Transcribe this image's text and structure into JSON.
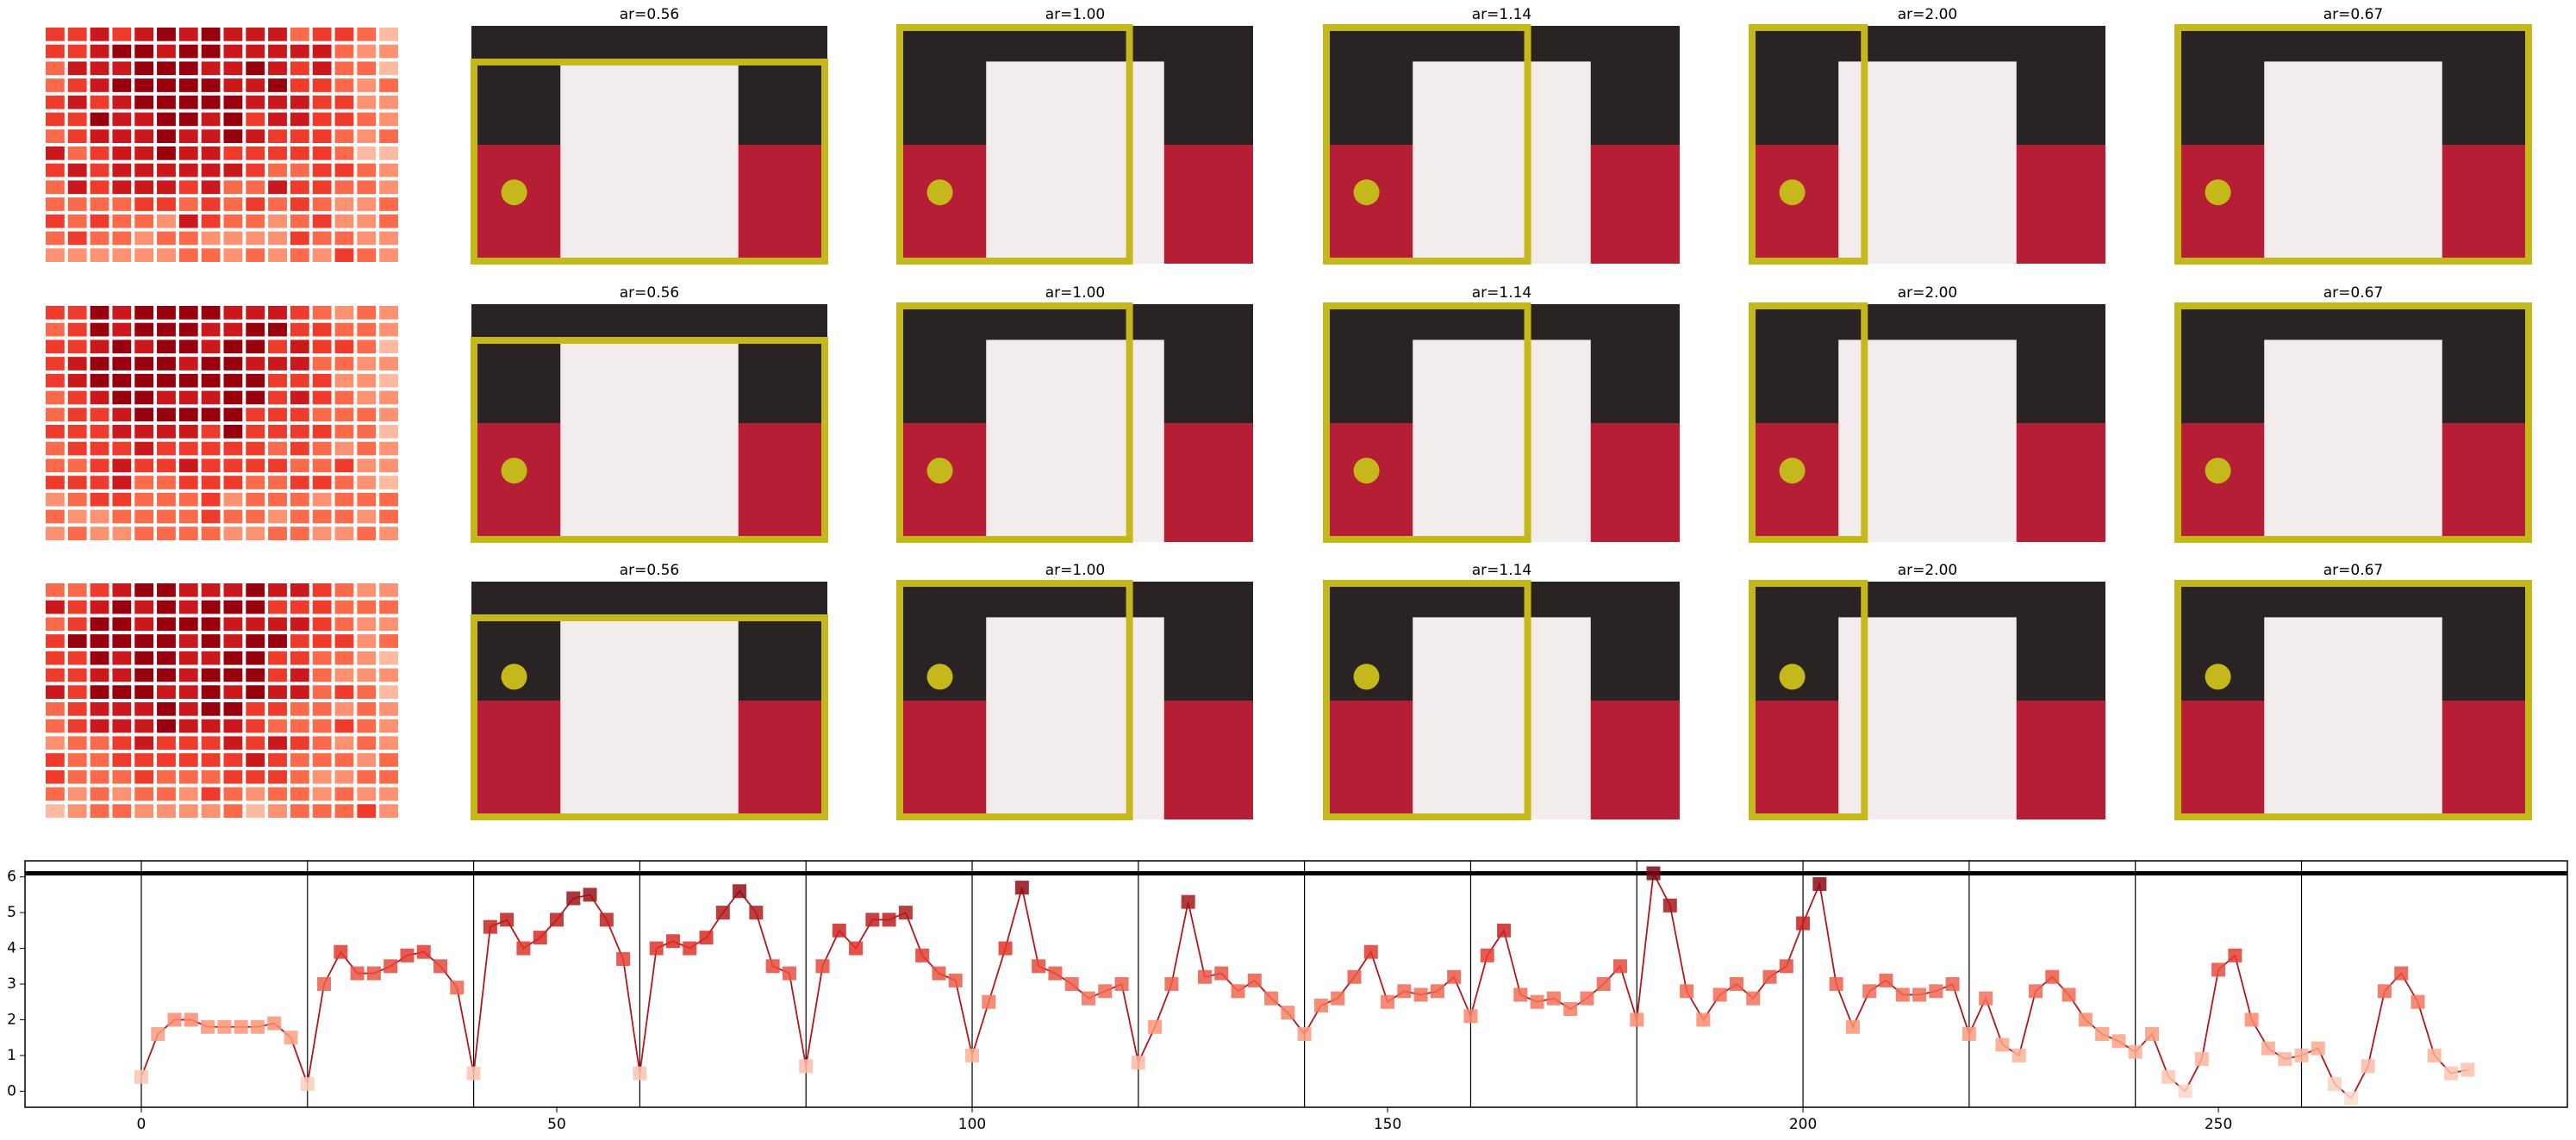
{
  "panels": {
    "rows": [
      {
        "titles": [
          "ar=0.56",
          "ar=1.00",
          "ar=1.14",
          "ar=2.00",
          "ar=0.67"
        ]
      },
      {
        "titles": [
          "ar=0.56",
          "ar=1.00",
          "ar=1.14",
          "ar=2.00",
          "ar=0.67"
        ]
      },
      {
        "titles": [
          "ar=0.56",
          "ar=1.00",
          "ar=1.14",
          "ar=2.00",
          "ar=0.67"
        ]
      }
    ]
  },
  "chart_data": {
    "type": "line",
    "x": [
      0,
      2,
      4,
      6,
      8,
      10,
      12,
      14,
      16,
      18,
      20,
      22,
      24,
      26,
      28,
      30,
      32,
      34,
      36,
      38,
      40,
      42,
      44,
      46,
      48,
      50,
      52,
      54,
      56,
      58,
      60,
      62,
      64,
      66,
      68,
      70,
      72,
      74,
      76,
      78,
      80,
      82,
      84,
      86,
      88,
      90,
      92,
      94,
      96,
      98,
      100,
      102,
      104,
      106,
      108,
      110,
      112,
      114,
      116,
      118,
      120,
      122,
      124,
      126,
      128,
      130,
      132,
      134,
      136,
      138,
      140,
      142,
      144,
      146,
      148,
      150,
      152,
      154,
      156,
      158,
      160,
      162,
      164,
      166,
      168,
      170,
      172,
      174,
      176,
      178,
      180,
      182,
      184,
      186,
      188,
      190,
      192,
      194,
      196,
      198,
      200,
      202,
      204,
      206,
      208,
      210,
      212,
      214,
      216,
      218,
      220,
      222,
      224,
      226,
      228,
      230,
      232,
      234,
      236,
      238,
      240,
      242,
      244,
      246,
      248,
      250,
      252,
      254,
      256,
      258,
      260,
      262,
      264,
      266,
      268,
      270,
      272,
      274,
      276,
      278,
      280
    ],
    "series": [
      {
        "color": "#b5161b",
        "values": [
          0.4,
          1.6,
          2.0,
          2.0,
          1.8,
          1.8,
          1.8,
          1.8,
          1.9,
          1.5,
          0.2,
          3.0,
          3.9,
          3.3,
          3.3,
          3.5,
          3.8,
          3.9,
          3.5,
          2.9,
          0.5,
          4.6,
          4.8,
          4.0,
          4.3,
          4.8,
          5.4,
          5.5,
          4.8,
          3.7,
          0.5,
          4.0,
          4.2,
          4.0,
          4.3,
          5.0,
          5.6,
          5.0,
          3.5,
          3.3,
          0.7,
          3.5,
          4.5,
          4.0,
          4.8,
          4.8,
          5.0,
          3.8,
          3.3,
          3.1,
          1.0,
          2.5,
          4.0,
          5.7,
          3.5,
          3.3,
          3.0,
          2.6,
          2.8,
          3.0,
          0.8,
          1.8,
          3.0,
          5.3,
          3.2,
          3.3,
          2.8,
          3.1,
          2.6,
          2.2,
          1.6,
          2.4,
          2.6,
          3.2,
          3.9,
          2.5,
          2.8,
          2.7,
          2.8,
          3.2,
          2.1,
          3.8,
          4.5,
          2.7,
          2.5,
          2.6,
          2.3,
          2.6,
          3.0,
          3.5,
          2.0,
          6.1,
          5.2,
          2.8,
          2.0,
          2.7,
          3.0,
          2.6,
          3.2,
          3.5,
          4.7,
          5.8,
          3.0,
          1.8,
          2.8,
          3.1,
          2.7,
          2.7,
          2.8,
          3.0,
          1.6,
          2.6,
          1.3,
          1.0,
          2.8,
          3.2,
          2.7,
          2.0,
          1.6,
          1.4,
          1.1,
          1.6,
          0.4,
          0.0,
          0.9,
          3.4,
          3.8,
          2.0,
          1.2,
          0.9,
          1.0,
          1.2,
          0.2,
          -0.2,
          0.7,
          2.8,
          3.3,
          2.5,
          1.0,
          0.5,
          0.6
        ]
      }
    ],
    "colormap": "Reds",
    "vlines": [
      0,
      20,
      40,
      60,
      80,
      100,
      120,
      140,
      160,
      180,
      200,
      220,
      240,
      260
    ],
    "hline": 6.1,
    "xlim": [
      -14,
      292
    ],
    "ylim": [
      -0.45,
      6.45
    ],
    "xticks": [
      0,
      50,
      100,
      150,
      200,
      250
    ],
    "yticks": [
      0,
      1,
      2,
      3,
      4,
      5,
      6
    ]
  }
}
